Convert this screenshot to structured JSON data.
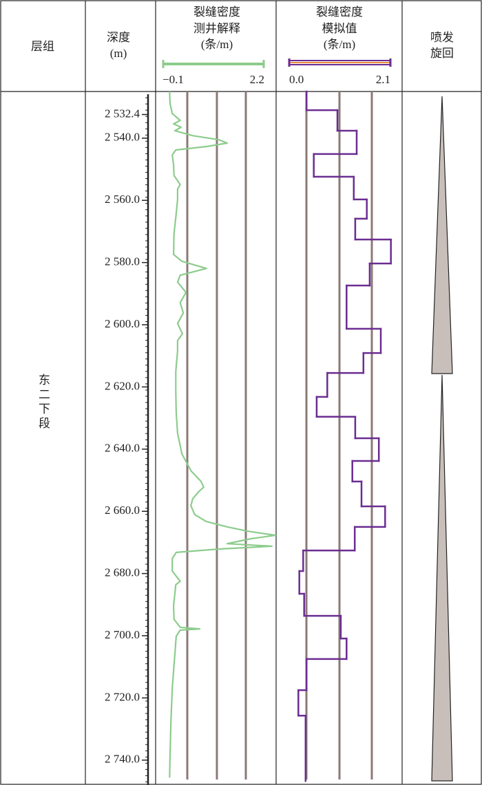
{
  "chart_data": {
    "type": "well-log",
    "formation_header": "层组",
    "formation": "东二下段",
    "depth_header": [
      "深度",
      "(m)"
    ],
    "cycle_header": [
      "喷发",
      "旋回"
    ],
    "ylim": [
      2525,
      2748
    ],
    "yticks": [
      {
        "value": 2532.4,
        "label": "2 532.4"
      },
      {
        "value": 2540,
        "label": "2 540.0"
      },
      {
        "value": 2560,
        "label": "2 560.0"
      },
      {
        "value": 2580,
        "label": "2 580.0"
      },
      {
        "value": 2600,
        "label": "2 600.0"
      },
      {
        "value": 2620,
        "label": "2 620.0"
      },
      {
        "value": 2640,
        "label": "2 640.0"
      },
      {
        "value": 2660,
        "label": "2 660.0"
      },
      {
        "value": 2680,
        "label": "2 680.0"
      },
      {
        "value": 2700,
        "label": "2 700.0"
      },
      {
        "value": 2720,
        "label": "2 720.0"
      },
      {
        "value": 2740,
        "label": "2 740.0"
      }
    ],
    "tracks": [
      {
        "style": "curve",
        "title": [
          "裂缝密度",
          "测井解释",
          "(条/m)"
        ],
        "color": "#8ccc8c",
        "xlim": [
          -0.1,
          2.2
        ],
        "xticks": [
          {
            "value": -0.1,
            "label": "−0.1"
          },
          2.2
        ],
        "depths": [
          2525.0,
          2528.8,
          2532.1,
          2534.3,
          2535.4,
          2536.5,
          2537.6,
          2539.2,
          2540.5,
          2541.6,
          2542.7,
          2543.8,
          2545.4,
          2548.7,
          2552.0,
          2554.9,
          2556.4,
          2559.7,
          2564.2,
          2570.8,
          2577.4,
          2579.6,
          2581.9,
          2584.1,
          2586.3,
          2589.6,
          2592.9,
          2596.2,
          2599.6,
          2602.9,
          2605.1,
          2608.4,
          2615.0,
          2621.6,
          2628.3,
          2634.9,
          2641.6,
          2647.1,
          2650.4,
          2652.2,
          2653.8,
          2656.0,
          2658.2,
          2661.1,
          2663.3,
          2665.0,
          2666.4,
          2667.7,
          2668.8,
          2670.4,
          2671.2,
          2672.1,
          2673.2,
          2675.2,
          2679.2,
          2682.5,
          2683.6,
          2690.3,
          2694.7,
          2697.3,
          2697.8,
          2698.2,
          2700.2,
          2705.8,
          2716.8,
          2727.9,
          2739.0,
          2745.6
        ],
        "values": [
          0.06,
          0.07,
          0.12,
          0.3,
          0.15,
          0.32,
          0.18,
          0.58,
          1.17,
          1.36,
          0.89,
          0.2,
          0.12,
          0.15,
          0.16,
          0.3,
          0.24,
          0.24,
          0.21,
          0.16,
          0.15,
          0.34,
          0.89,
          0.3,
          0.24,
          0.43,
          0.3,
          0.37,
          0.24,
          0.35,
          0.24,
          0.24,
          0.2,
          0.2,
          0.21,
          0.24,
          0.34,
          0.55,
          0.77,
          0.83,
          0.71,
          0.58,
          0.54,
          0.63,
          0.89,
          1.36,
          1.83,
          2.45,
          1.9,
          1.36,
          2.37,
          1.21,
          0.21,
          0.12,
          0.12,
          0.3,
          0.2,
          0.15,
          0.16,
          0.3,
          0.74,
          0.3,
          0.21,
          0.18,
          0.12,
          0.09,
          0.07,
          0.06
        ]
      },
      {
        "style": "step",
        "title": [
          "裂缝密度",
          "模拟值",
          "(条/m)"
        ],
        "color": "#6a2c91",
        "xlim": [
          0,
          2.1
        ],
        "xticks": [
          {
            "value": 0,
            "label": "0.0"
          },
          {
            "value": 2.1,
            "label": "2.1"
          }
        ],
        "depths": [
          2525.0,
          2531.0,
          2537.6,
          2545.1,
          2552.4,
          2559.7,
          2565.9,
          2572.6,
          2580.3,
          2587.4,
          2601.3,
          2609.1,
          2615.5,
          2623.2,
          2629.6,
          2636.5,
          2643.8,
          2650.4,
          2658.4,
          2665.0,
          2672.6,
          2679.2,
          2686.5,
          2693.6,
          2700.9,
          2707.5,
          2717.5,
          2725.7,
          2746.7
        ],
        "values": [
          0.36,
          1.0,
          1.4,
          0.51,
          1.34,
          1.61,
          1.37,
          2.11,
          1.67,
          1.19,
          1.9,
          1.54,
          0.79,
          0.57,
          1.37,
          1.86,
          1.31,
          1.5,
          1.99,
          1.36,
          0.29,
          0.21,
          0.31,
          1.07,
          1.19,
          0.36,
          0.19,
          0.34
        ]
      }
    ]
  }
}
